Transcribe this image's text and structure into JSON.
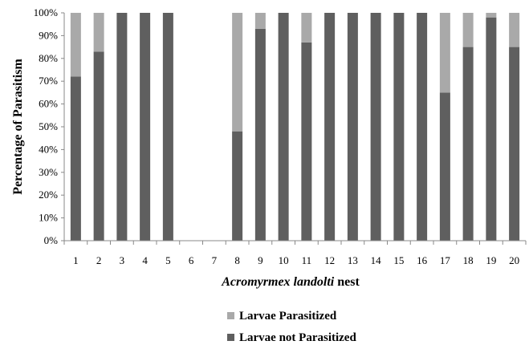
{
  "chart_data": {
    "type": "bar",
    "stacked": true,
    "percent_stacked": true,
    "categories": [
      "1",
      "2",
      "3",
      "4",
      "5",
      "6",
      "7",
      "8",
      "9",
      "10",
      "11",
      "12",
      "13",
      "14",
      "15",
      "16",
      "17",
      "18",
      "19",
      "20"
    ],
    "series": [
      {
        "name": "Larvae not Parasitized",
        "color": "#5f5f5f",
        "values": [
          72,
          83,
          100,
          100,
          100,
          0,
          0,
          48,
          93,
          100,
          87,
          100,
          100,
          100,
          100,
          100,
          65,
          85,
          98,
          85
        ]
      },
      {
        "name": "Larvae Parasitized",
        "color": "#a9a9a9",
        "values": [
          28,
          17,
          0,
          0,
          0,
          0,
          0,
          52,
          7,
          0,
          13,
          0,
          0,
          0,
          0,
          0,
          35,
          15,
          2,
          15
        ]
      }
    ],
    "xlabel_italic": "Acromyrmex landolti",
    "xlabel_rest": " nest",
    "ylabel": "Percentage of  Parasitism",
    "ylim": [
      0,
      100
    ],
    "yticks": [
      "0%",
      "10%",
      "20%",
      "30%",
      "40%",
      "50%",
      "60%",
      "70%",
      "80%",
      "90%",
      "100%"
    ],
    "grid": false,
    "legend_position": "bottom-center",
    "legend_order": [
      "Larvae Parasitized",
      "Larvae not Parasitized"
    ]
  }
}
